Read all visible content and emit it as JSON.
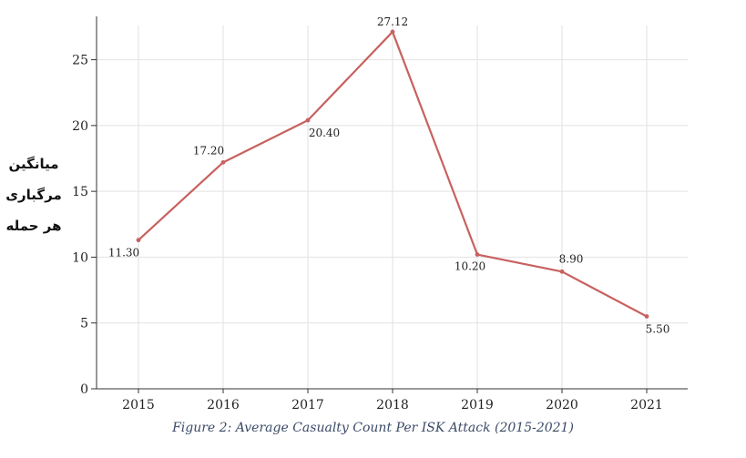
{
  "chart_data": {
    "type": "line",
    "categories": [
      "2015",
      "2016",
      "2017",
      "2018",
      "2019",
      "2020",
      "2021"
    ],
    "series": [
      {
        "values": [
          11.3,
          17.2,
          20.4,
          27.12,
          10.2,
          8.9,
          5.5
        ],
        "data_labels": [
          "11.30",
          "17.20",
          "20.40",
          "27.12",
          "10.20",
          "8.90",
          "5.50"
        ],
        "color": "#c8615f"
      }
    ],
    "ylabel_lines": [
      "میانگین",
      "مرگباری",
      "هر حمله"
    ],
    "yticks": [
      0,
      5,
      10,
      15,
      20,
      25
    ],
    "ylim": [
      0,
      27.6
    ],
    "grid": true,
    "caption": "Figure 2: Average Casualty Count Per ISK Attack (2015-2021)",
    "colors": {
      "line": "#c8615f",
      "grid": "#e2e2e2",
      "axis": "#333333",
      "caption": "#3b4a66"
    }
  }
}
